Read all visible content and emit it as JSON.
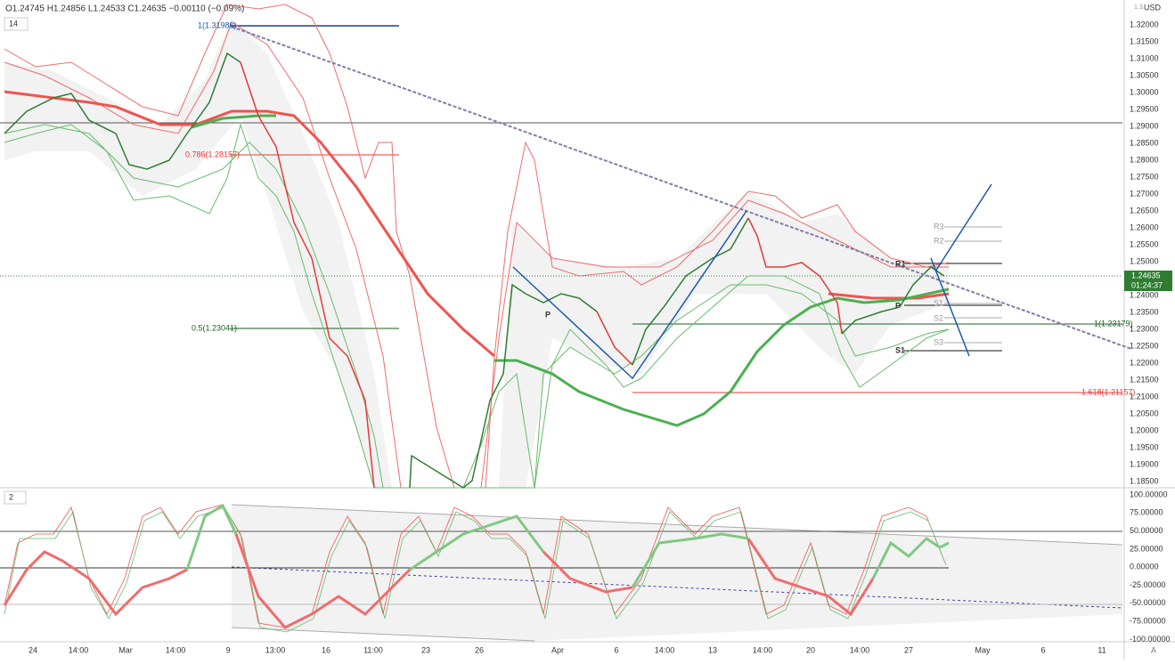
{
  "header": {
    "ohlc": "O1.24745 H1.24856 L1.24533 C1.24635 −0.00110 (−0.09%)",
    "main_pane_badge": "14",
    "osc_pane_badge": "2"
  },
  "price_axis": {
    "currency": "USD",
    "top_cut": "1.3...",
    "labels": [
      "1.32000",
      "1.31500",
      "1.31000",
      "1.30500",
      "1.30000",
      "1.29500",
      "1.29000",
      "1.28500",
      "1.28000",
      "1.27500",
      "1.27000",
      "1.26500",
      "1.26000",
      "1.25500",
      "1.25000",
      "1.24500",
      "1.24000",
      "1.23500",
      "1.23000",
      "1.22500",
      "1.22000",
      "1.21500",
      "1.21000",
      "1.20500",
      "1.20000",
      "1.19500",
      "1.19000",
      "1.18500"
    ],
    "current_price": "1.24635",
    "countdown": "01:24:37"
  },
  "osc_axis": {
    "labels": [
      "100.00000",
      "75.00000",
      "50.00000",
      "25.00000",
      "0.00000",
      "-25.00000",
      "-50.00000",
      "-75.00000",
      "-100.00000"
    ]
  },
  "time_axis": {
    "labels": [
      "24",
      "14:00",
      "Mar",
      "14:00",
      "9",
      "13:00",
      "16",
      "11:00",
      "23",
      "26",
      "Apr",
      "6",
      "14:00",
      "13",
      "14:00",
      "20",
      "14:00",
      "27",
      "May",
      "6",
      "11"
    ],
    "corner": "A"
  },
  "annotations": {
    "fib_top": "1(1.31986)",
    "fib_786": "0.786(1.28157)",
    "fib_05": "0.5(1.23041)",
    "fib_1_right": "1(1.23179)",
    "fib_1618": "1.618(1.21157)",
    "pivot_left": "P",
    "r1": "R1",
    "r2": "R2",
    "r3": "R3",
    "p": "P",
    "s1_right": "S1",
    "s2": "S2",
    "s3": "S3",
    "s1_left": "S1"
  }
}
